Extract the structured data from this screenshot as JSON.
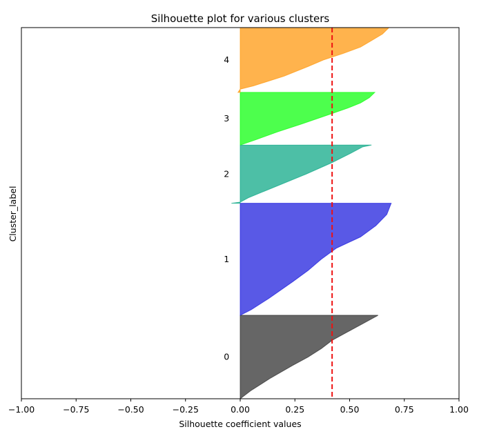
{
  "chart_data": {
    "type": "area",
    "title": "Silhouette plot for various clusters",
    "xlabel": "Silhouette coefficient values",
    "ylabel": "Cluster_label",
    "xlim": [
      -1.0,
      1.0
    ],
    "xticks": [
      -1.0,
      -0.75,
      -0.5,
      -0.25,
      0.0,
      0.25,
      0.5,
      0.75,
      1.0
    ],
    "xtick_labels": [
      "−1.00",
      "−0.75",
      "−0.50",
      "−0.25",
      "0.00",
      "0.25",
      "0.50",
      "0.75",
      "1.00"
    ],
    "yticks_visible": false,
    "grid": false,
    "average_silhouette_score": 0.42,
    "average_line_color": "#ee1111",
    "sample_axis_max": 338,
    "clusters": [
      {
        "label": "0",
        "color": "#333333",
        "start": 0,
        "size": 76,
        "profile": [
          [
            0.0,
            0.0
          ],
          [
            0.1,
            0.05
          ],
          [
            0.25,
            0.14
          ],
          [
            0.4,
            0.24
          ],
          [
            0.5,
            0.31
          ],
          [
            0.6,
            0.37
          ],
          [
            0.7,
            0.42
          ],
          [
            0.8,
            0.49
          ],
          [
            0.9,
            0.56
          ],
          [
            1.0,
            0.63
          ]
        ]
      },
      {
        "label": "1",
        "color": "#2222dd",
        "start": 76,
        "size": 102,
        "profile": [
          [
            0.0,
            0.0
          ],
          [
            0.05,
            0.05
          ],
          [
            0.15,
            0.13
          ],
          [
            0.3,
            0.24
          ],
          [
            0.4,
            0.31
          ],
          [
            0.5,
            0.37
          ],
          [
            0.6,
            0.44
          ],
          [
            0.7,
            0.55
          ],
          [
            0.8,
            0.62
          ],
          [
            0.9,
            0.67
          ],
          [
            1.0,
            0.69
          ]
        ]
      },
      {
        "label": "2",
        "color": "#11aa88",
        "start": 178,
        "size": 53,
        "profile": [
          [
            0.0,
            -0.04
          ],
          [
            0.02,
            0.0
          ],
          [
            0.1,
            0.04
          ],
          [
            0.3,
            0.17
          ],
          [
            0.5,
            0.3
          ],
          [
            0.7,
            0.42
          ],
          [
            0.85,
            0.5
          ],
          [
            0.97,
            0.56
          ],
          [
            1.0,
            0.6
          ]
        ]
      },
      {
        "label": "3",
        "color": "#11ff11",
        "start": 231,
        "size": 48,
        "profile": [
          [
            0.0,
            0.0
          ],
          [
            0.1,
            0.07
          ],
          [
            0.25,
            0.17
          ],
          [
            0.4,
            0.28
          ],
          [
            0.5,
            0.35
          ],
          [
            0.6,
            0.42
          ],
          [
            0.7,
            0.49
          ],
          [
            0.8,
            0.55
          ],
          [
            0.9,
            0.59
          ],
          [
            1.0,
            0.615
          ]
        ]
      },
      {
        "label": "4",
        "color": "#ff9911",
        "start": 279,
        "size": 59,
        "profile": [
          [
            0.0,
            -0.01
          ],
          [
            0.05,
            0.0
          ],
          [
            0.1,
            0.06
          ],
          [
            0.25,
            0.2
          ],
          [
            0.4,
            0.31
          ],
          [
            0.5,
            0.38
          ],
          [
            0.6,
            0.47
          ],
          [
            0.7,
            0.55
          ],
          [
            0.8,
            0.6
          ],
          [
            0.9,
            0.65
          ],
          [
            1.0,
            0.68
          ]
        ]
      }
    ]
  }
}
